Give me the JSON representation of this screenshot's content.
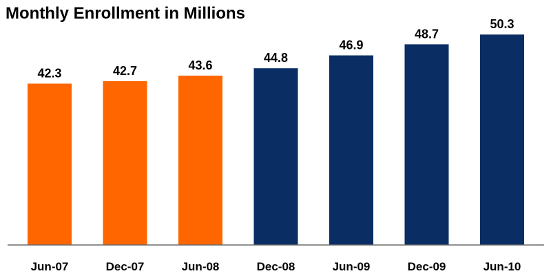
{
  "chart_data": {
    "type": "bar",
    "title": "Monthly Enrollment in Millions",
    "xlabel": "",
    "ylabel": "",
    "categories": [
      "Jun-07",
      "Dec-07",
      "Jun-08",
      "Dec-08",
      "Jun-09",
      "Dec-09",
      "Jun-10"
    ],
    "values": [
      42.3,
      42.7,
      43.6,
      44.8,
      46.9,
      48.7,
      50.3
    ],
    "bar_colors": [
      "#ff6600",
      "#ff6600",
      "#ff6600",
      "#0a2d63",
      "#0a2d63",
      "#0a2d63",
      "#0a2d63"
    ],
    "ylim": [
      16,
      52
    ],
    "grid": false,
    "legend": "none"
  }
}
